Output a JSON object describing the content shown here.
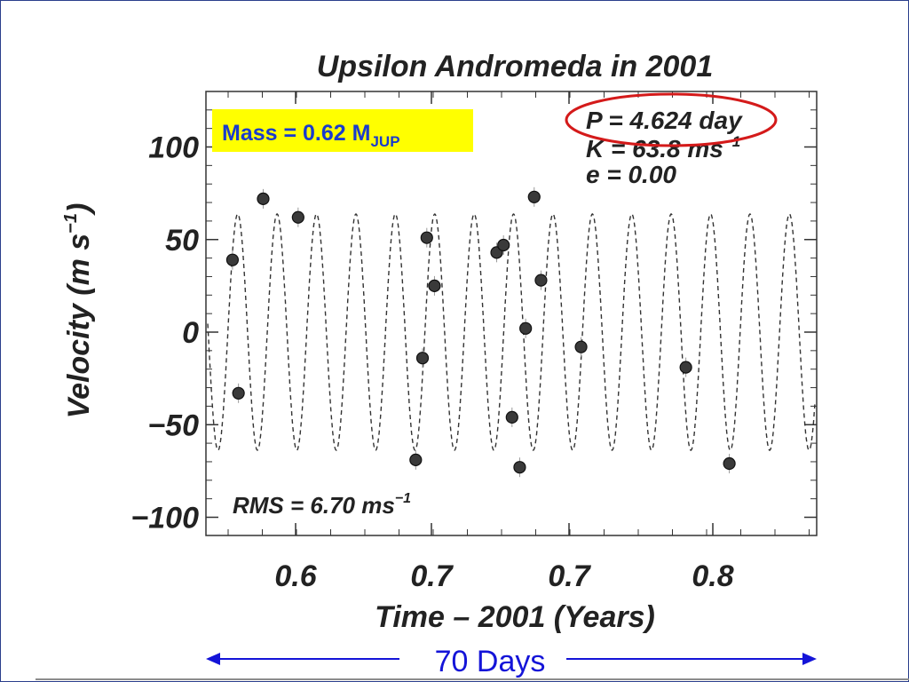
{
  "chart_data": {
    "type": "scatter",
    "title": "Upsilon Andromeda  in  2001",
    "xlabel": "Time – 2001  (Years)",
    "ylabel_main": "Velocity  (m s",
    "ylabel_sup": "−1",
    "ylabel_close": ")",
    "xtick_labels": [
      "0.6",
      "0.7",
      "0.7",
      "0.8"
    ],
    "ytick_labels": [
      "100",
      "50",
      "0",
      "−50",
      "−100"
    ],
    "yticks": [
      100,
      50,
      0,
      -50,
      -100
    ],
    "ylim": [
      -110,
      130
    ],
    "xlim_days": [
      0,
      70
    ],
    "fit": {
      "period_days": 4.624,
      "amplitude_ms": 63.8,
      "eccentricity": 0.0
    },
    "annotations": {
      "period": "P = 4.624 day",
      "amplitude_main": "K = 63.8 ms",
      "amplitude_sup": "−1",
      "eccentricity": "e = 0.00",
      "rms_main": "RMS = 6.70 ms",
      "rms_sup": "−1"
    },
    "series": [
      {
        "points": [
          {
            "x": 2.7,
            "y": 39
          },
          {
            "x": 3.4,
            "y": -33
          },
          {
            "x": 6.3,
            "y": 72
          },
          {
            "x": 10.4,
            "y": 62
          },
          {
            "x": 24.2,
            "y": -69
          },
          {
            "x": 25.0,
            "y": -14
          },
          {
            "x": 25.5,
            "y": 51
          },
          {
            "x": 26.4,
            "y": 25
          },
          {
            "x": 33.7,
            "y": 43
          },
          {
            "x": 34.5,
            "y": 47
          },
          {
            "x": 35.5,
            "y": -46
          },
          {
            "x": 36.4,
            "y": -73
          },
          {
            "x": 37.1,
            "y": 2
          },
          {
            "x": 38.1,
            "y": 73
          },
          {
            "x": 38.9,
            "y": 28
          },
          {
            "x": 43.6,
            "y": -8
          },
          {
            "x": 55.9,
            "y": -19
          },
          {
            "x": 61.0,
            "y": -71
          }
        ]
      }
    ]
  },
  "mass_box": {
    "text": "Mass = 0.62 M",
    "subscript": "JUP",
    "bg": "#ffff00",
    "color": "#1a3ccc"
  },
  "span_label": "70  Days",
  "colors": {
    "point": "#3a3a3a",
    "curve": "#333333",
    "arrow": "#1414d8",
    "ellipse": "#d41a1a",
    "frame": "#2b3f8c"
  }
}
